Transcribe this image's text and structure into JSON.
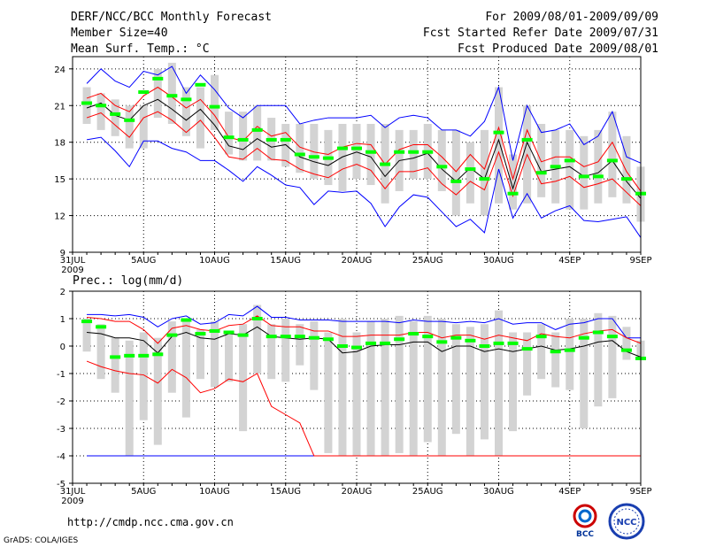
{
  "header": {
    "title": "DERF/NCC/BCC Monthly Forecast",
    "member_size": "Member Size=40",
    "variable": "Mean Surf. Temp.: °C",
    "forecast_period": "For 2009/08/01-2009/09/09",
    "refer_date": "Fcst Started Refer Date 2009/07/31",
    "produced_date": "Fcst Produced Date 2009/08/01"
  },
  "footer": {
    "url": "http://cmdp.ncc.cma.gov.cn",
    "grads_credit": "GrADS: COLA/IGES",
    "logo_bcc": "BCC",
    "logo_ncc": "NCC"
  },
  "colors": {
    "box": "#d3d3d3",
    "median": "#00ff00",
    "mean": "#000000",
    "spread": "#ff0000",
    "envelope": "#0000ff",
    "grid": "#000000"
  },
  "chart_data": [
    {
      "type": "box-plume",
      "title": "Mean Surf. Temp.: °C",
      "ylim": [
        9,
        25
      ],
      "yticks": [
        9,
        12,
        15,
        18,
        21,
        24
      ],
      "xticks": [
        {
          "day": 0,
          "label": "31JUL",
          "sub": "2009"
        },
        {
          "day": 5,
          "label": "5AUG"
        },
        {
          "day": 10,
          "label": "10AUG"
        },
        {
          "day": 15,
          "label": "15AUG"
        },
        {
          "day": 20,
          "label": "20AUG"
        },
        {
          "day": 25,
          "label": "25AUG"
        },
        {
          "day": 30,
          "label": "30AUG"
        },
        {
          "day": 35,
          "label": "4SEP"
        },
        {
          "day": 40,
          "label": "9SEP"
        }
      ],
      "x": [
        1,
        2,
        3,
        4,
        5,
        6,
        7,
        8,
        9,
        10,
        11,
        12,
        13,
        14,
        15,
        16,
        17,
        18,
        19,
        20,
        21,
        22,
        23,
        24,
        25,
        26,
        27,
        28,
        29,
        30,
        31,
        32,
        33,
        34,
        35,
        36,
        37,
        38,
        39,
        40
      ],
      "box_low": [
        19.5,
        19,
        18.5,
        17.5,
        17.5,
        20,
        19.5,
        18.5,
        17.5,
        19,
        17,
        16.5,
        16.5,
        16.5,
        16,
        15.5,
        15,
        14.5,
        14,
        15,
        14.5,
        13,
        14,
        15,
        15,
        14,
        12,
        13,
        12,
        13,
        12.5,
        13,
        13.5,
        13,
        12.5,
        12.5,
        13,
        13.5,
        13,
        11.5
      ],
      "box_high": [
        22.5,
        22,
        21.5,
        21,
        21,
        24,
        24.5,
        22.5,
        22.5,
        23.5,
        20.5,
        20.5,
        21,
        20,
        19.5,
        19.5,
        19.5,
        19,
        19.5,
        19.5,
        19.5,
        19.5,
        19,
        19,
        19.5,
        19,
        19,
        18,
        19,
        22.5,
        17,
        21,
        19.5,
        19,
        19,
        18.5,
        19,
        20.5,
        18.5,
        16
      ],
      "median": [
        21.2,
        21,
        20.3,
        19.8,
        22.1,
        23.2,
        21.8,
        21.5,
        22.7,
        20.9,
        18.4,
        18.2,
        19,
        18.2,
        18.2,
        17,
        16.8,
        16.7,
        17.5,
        17.5,
        17.2,
        16.2,
        17.2,
        17.2,
        17.2,
        16,
        14.8,
        15.8,
        15,
        18.8,
        13.8,
        18.2,
        15.5,
        16,
        16.5,
        15.2,
        15.2,
        16.5,
        15,
        13.8
      ],
      "mean": [
        20.8,
        21.2,
        20.2,
        19.8,
        21,
        21.5,
        20.7,
        19.8,
        20.7,
        19.4,
        17.7,
        17.4,
        18.3,
        17.6,
        17.8,
        16.8,
        16.4,
        16.1,
        16.8,
        17.2,
        16.8,
        15.2,
        16.5,
        16.7,
        17.1,
        15.8,
        14.8,
        15.9,
        15,
        18.2,
        14.2,
        18,
        15.6,
        15.8,
        16,
        15.2,
        15.5,
        16.5,
        14.8,
        13.4
      ],
      "upper": [
        21.6,
        22,
        21,
        20.5,
        21.8,
        22.5,
        21.7,
        20.8,
        21.5,
        20.2,
        18.4,
        18.1,
        19.3,
        18.5,
        18.8,
        17.6,
        17.2,
        17,
        17.6,
        17.9,
        17.8,
        16.2,
        17.4,
        17.8,
        17.8,
        16.8,
        15.6,
        17,
        15.8,
        19.2,
        15,
        19,
        16.4,
        16.8,
        16.8,
        16,
        16.4,
        18,
        15.6,
        14
      ],
      "lower": [
        20,
        20.4,
        19.4,
        18.4,
        20,
        20.5,
        19.8,
        18.8,
        19.8,
        18.4,
        16.8,
        16.6,
        17.5,
        16.6,
        16.5,
        15.8,
        15.4,
        15.1,
        15.8,
        16.2,
        15.7,
        14.2,
        15.6,
        15.6,
        15.9,
        14.6,
        13.7,
        14.8,
        14.1,
        17.2,
        13.6,
        17,
        14.6,
        14.8,
        15.2,
        14.3,
        14.6,
        15,
        13.9,
        12.8
      ],
      "max": [
        22.8,
        24,
        23,
        22.5,
        23.8,
        23.5,
        24.2,
        22,
        23.5,
        22.3,
        20.8,
        20,
        21,
        21,
        21,
        19.5,
        19.8,
        20,
        20,
        20,
        20.2,
        19.2,
        20,
        20.2,
        20,
        19,
        19,
        18.5,
        19.7,
        22.5,
        16.5,
        21,
        18.8,
        19,
        19.5,
        17.8,
        18.5,
        20.5,
        16.8,
        16.3
      ],
      "min": [
        18.2,
        18.4,
        17.3,
        16,
        18.1,
        18.1,
        17.5,
        17.2,
        16.5,
        16.5,
        15.7,
        14.8,
        16,
        15.3,
        14.5,
        14.3,
        12.9,
        14,
        13.9,
        14,
        13,
        11.1,
        12.7,
        13.7,
        13.5,
        12.3,
        11.1,
        11.7,
        10.6,
        15.8,
        11.8,
        13.8,
        11.8,
        12.4,
        12.8,
        11.6,
        11.5,
        11.7,
        11.9,
        10.2
      ]
    },
    {
      "type": "box-plume",
      "title": "Prec.: log(mm/d)",
      "ylim": [
        -5,
        2
      ],
      "yticks": [
        -5,
        -4,
        -3,
        -2,
        -1,
        0,
        1,
        2
      ],
      "xticks": [
        {
          "day": 0,
          "label": "31JUL",
          "sub": "2009"
        },
        {
          "day": 5,
          "label": "5AUG"
        },
        {
          "day": 10,
          "label": "10AUG"
        },
        {
          "day": 15,
          "label": "15AUG"
        },
        {
          "day": 20,
          "label": "20AUG"
        },
        {
          "day": 25,
          "label": "25AUG"
        },
        {
          "day": 30,
          "label": "30AUG"
        },
        {
          "day": 35,
          "label": "4SEP"
        },
        {
          "day": 40,
          "label": "9SEP"
        }
      ],
      "x": [
        1,
        2,
        3,
        4,
        5,
        6,
        7,
        8,
        9,
        10,
        11,
        12,
        13,
        14,
        15,
        16,
        17,
        18,
        19,
        20,
        21,
        22,
        23,
        24,
        25,
        26,
        27,
        28,
        29,
        30,
        31,
        32,
        33,
        34,
        35,
        36,
        37,
        38,
        39,
        40
      ],
      "box_low": [
        -0.2,
        -1.2,
        -1.7,
        -4,
        -2.7,
        -3.6,
        -1.7,
        -2.6,
        -1.2,
        -1.5,
        -1.3,
        -3.1,
        -1,
        -1.2,
        -1.3,
        -0.7,
        -1.6,
        -3.9,
        -4,
        -4,
        -4,
        -4,
        -3.9,
        -4,
        -3.5,
        -4,
        -3.2,
        -4,
        -3.4,
        -4,
        -3.1,
        -1.8,
        -1.2,
        -1.5,
        -1.6,
        -3,
        -2.2,
        -1.9,
        -0.5,
        -0.5
      ],
      "box_high": [
        1,
        0.8,
        0.3,
        0.2,
        0.5,
        0.3,
        0.9,
        1,
        0.6,
        0.9,
        0.5,
        0.8,
        1.5,
        0.8,
        1,
        0.8,
        0.9,
        0.5,
        1,
        0.5,
        0.9,
        1,
        1.1,
        0.9,
        1.1,
        1,
        0.8,
        0.7,
        0.8,
        1.3,
        0.5,
        0.5,
        0.8,
        0.5,
        1,
        1,
        1.2,
        1.1,
        0.7,
        0.2
      ],
      "median": [
        0.9,
        0.7,
        -0.4,
        -0.35,
        -0.35,
        -0.3,
        0.4,
        0.95,
        0.45,
        0.55,
        0.5,
        0.4,
        1,
        0.35,
        0.35,
        0.35,
        0.3,
        0.25,
        0,
        -0.05,
        0.1,
        0.1,
        0.25,
        0.45,
        0.35,
        0.15,
        0.3,
        0.2,
        0,
        0.1,
        0.1,
        -0.1,
        0.35,
        -0.2,
        -0.15,
        0.3,
        0.5,
        0.35,
        -0.15,
        -0.45
      ],
      "mean": [
        0.5,
        0.45,
        0.3,
        0.3,
        0.2,
        -0.25,
        0.35,
        0.5,
        0.3,
        0.25,
        0.45,
        0.4,
        0.7,
        0.35,
        0.3,
        0.25,
        0.3,
        0.25,
        -0.25,
        -0.2,
        0,
        0.05,
        0.05,
        0.15,
        0.15,
        -0.2,
        0,
        0,
        -0.2,
        -0.1,
        -0.2,
        -0.1,
        0,
        -0.15,
        -0.1,
        0,
        0.15,
        0.2,
        -0.2,
        -0.4
      ],
      "upper": [
        1.05,
        1,
        0.9,
        0.9,
        0.6,
        0.1,
        0.65,
        0.75,
        0.6,
        0.55,
        0.75,
        0.8,
        1.1,
        0.75,
        0.7,
        0.7,
        0.55,
        0.55,
        0.35,
        0.35,
        0.4,
        0.4,
        0.4,
        0.5,
        0.5,
        0.3,
        0.4,
        0.4,
        0.25,
        0.4,
        0.3,
        0.2,
        0.45,
        0.35,
        0.3,
        0.45,
        0.55,
        0.6,
        0.3,
        0.1
      ],
      "lower": [
        -0.55,
        -0.75,
        -0.9,
        -1.0,
        -1.05,
        -1.35,
        -0.85,
        -1.15,
        -1.7,
        -1.55,
        -1.2,
        -1.3,
        -1.0,
        -2.2,
        -2.5,
        -2.8,
        -4,
        -4,
        -4,
        -4,
        -4,
        -4,
        -4,
        -4,
        -4,
        -4,
        -4,
        -4,
        -4,
        -4,
        -4,
        -4,
        -4,
        -4,
        -4,
        -4,
        -4,
        -4,
        -4,
        -4
      ],
      "max": [
        1.15,
        1.15,
        1.1,
        1.15,
        1.05,
        0.7,
        1,
        1.1,
        0.8,
        0.85,
        1.15,
        1.1,
        1.45,
        1.05,
        1.05,
        0.95,
        0.95,
        0.95,
        0.9,
        0.9,
        0.9,
        0.9,
        0.85,
        0.95,
        0.9,
        0.9,
        0.85,
        0.9,
        0.85,
        1,
        0.8,
        0.85,
        0.85,
        0.6,
        0.8,
        0.85,
        1,
        1,
        0.3,
        0.3
      ],
      "min": [
        -4,
        -4,
        -4,
        -4,
        -4,
        -4,
        -4,
        -4,
        -4,
        -4,
        -4,
        -4,
        -4,
        -4,
        -4,
        -4,
        -4,
        -4,
        -4,
        -4,
        -4,
        -4,
        -4,
        -4,
        -4,
        -4,
        -4,
        -4,
        -4,
        -4,
        -4,
        -4,
        -4,
        -4,
        -4,
        -4,
        -4,
        -4,
        -4,
        -4
      ]
    }
  ]
}
